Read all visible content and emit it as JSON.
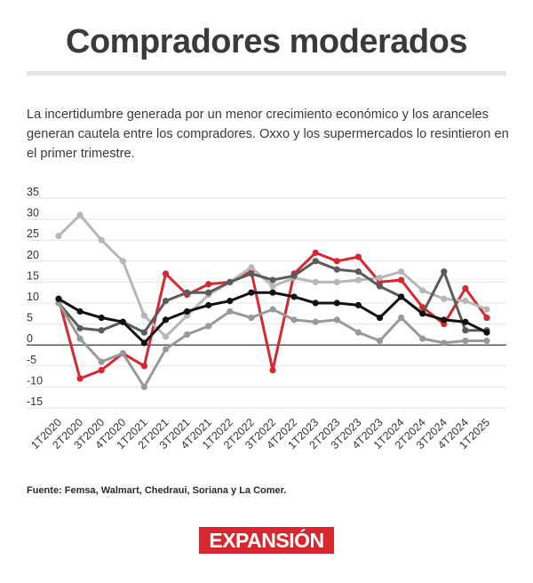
{
  "header": {
    "title": "Compradores moderados",
    "subtitle": "La incertidumbre generada por un menor crecimiento económico y los aranceles generan cautela entre los compradores. Oxxo y los supermercados lo resintieron en el primer trimestre."
  },
  "footer": {
    "source": "Fuente: Femsa, Walmart, Chedraui, Soriana y La Comer.",
    "logo": "EXPANSIÓN"
  },
  "chart_data": {
    "type": "line",
    "title": "",
    "xlabel": "",
    "ylabel": "",
    "ylim": [
      -15,
      35
    ],
    "yticks": [
      35,
      30,
      25,
      20,
      15,
      10,
      5,
      0,
      -5,
      -10,
      -15
    ],
    "grid": true,
    "legend": "none",
    "categories": [
      "1T2020",
      "2T2020",
      "3T2020",
      "4T2020",
      "1T2021",
      "2T2021",
      "3T2021",
      "4T2021",
      "1T2022",
      "2T2022",
      "3T2022",
      "4T2022",
      "1T2023",
      "2T2023",
      "3T2023",
      "4T2023",
      "1T2024",
      "2T2024",
      "3T2024",
      "4T2024",
      "1T2025"
    ],
    "series": [
      {
        "name": "Serie roja",
        "color": "#d7282f",
        "values": [
          11,
          -8,
          -6,
          -2,
          -5,
          17,
          12,
          14.5,
          15,
          17.5,
          -6,
          17,
          22,
          20,
          21,
          15,
          15.5,
          9,
          5,
          13.5,
          6.5
        ]
      },
      {
        "name": "Serie gris claro",
        "color": "#b7b7b7",
        "values": [
          26,
          31,
          25,
          20,
          7,
          2,
          7,
          12,
          15,
          18.5,
          14,
          16,
          15,
          15,
          15.5,
          16,
          17.5,
          13,
          11,
          10.5,
          8.5
        ]
      },
      {
        "name": "Serie gris oscuro",
        "color": "#5b5b5b",
        "values": [
          10,
          4,
          3.5,
          5.5,
          3,
          10.5,
          12.5,
          12.5,
          15,
          17,
          15.5,
          16.5,
          20,
          18,
          17.5,
          14,
          11.5,
          7.5,
          17.5,
          3.5,
          3.5
        ]
      },
      {
        "name": "Serie gris medio",
        "color": "#999999",
        "values": [
          10,
          1.5,
          -4,
          -2,
          -10,
          -1,
          2.5,
          4.5,
          8,
          6.5,
          8.5,
          6,
          5.5,
          6,
          3,
          1,
          6.5,
          1.5,
          0.5,
          1,
          1
        ]
      },
      {
        "name": "Serie negra",
        "color": "#111111",
        "values": [
          11,
          8,
          6.5,
          5.5,
          0.5,
          6,
          8,
          9.5,
          10.5,
          12.5,
          12.5,
          11.5,
          10,
          10,
          9.5,
          6.5,
          11.5,
          7.5,
          6,
          5.5,
          3
        ]
      }
    ]
  }
}
